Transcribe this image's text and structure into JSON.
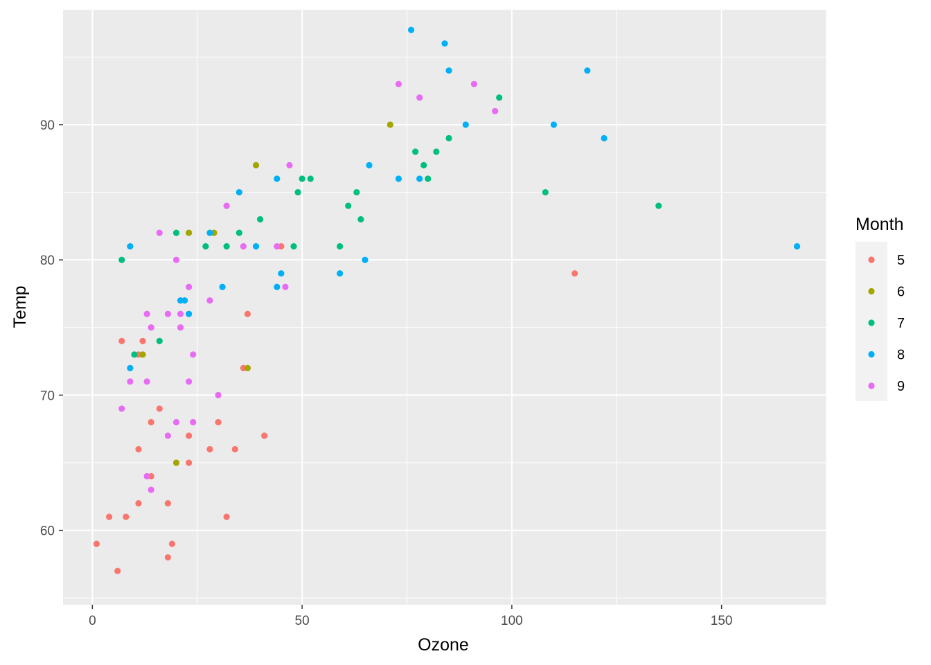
{
  "chart_data": {
    "type": "scatter",
    "xlabel": "Ozone",
    "ylabel": "Temp",
    "xlim": [
      -7,
      175
    ],
    "ylim": [
      54.5,
      98.5
    ],
    "x_ticks": [
      0,
      50,
      100,
      150
    ],
    "x_tick_labels": [
      "0",
      "50",
      "100",
      "150"
    ],
    "y_ticks": [
      60,
      70,
      80,
      90
    ],
    "y_tick_labels": [
      "60",
      "70",
      "80",
      "90"
    ],
    "grid": true,
    "legend": {
      "title": "Month",
      "position": "right",
      "entries": [
        {
          "label": "5",
          "color": "#F8766D"
        },
        {
          "label": "6",
          "color": "#A3A500"
        },
        {
          "label": "7",
          "color": "#00BF7D"
        },
        {
          "label": "8",
          "color": "#00B0F6"
        },
        {
          "label": "9",
          "color": "#E76BF3"
        }
      ]
    },
    "series": [
      {
        "name": "5",
        "color": "#F8766D",
        "points": [
          {
            "x": 1,
            "y": 59
          },
          {
            "x": 4,
            "y": 61
          },
          {
            "x": 6,
            "y": 57
          },
          {
            "x": 7,
            "y": 74
          },
          {
            "x": 8,
            "y": 61
          },
          {
            "x": 11,
            "y": 66
          },
          {
            "x": 11,
            "y": 62
          },
          {
            "x": 11,
            "y": 73
          },
          {
            "x": 12,
            "y": 74
          },
          {
            "x": 14,
            "y": 68
          },
          {
            "x": 14,
            "y": 64
          },
          {
            "x": 16,
            "y": 69
          },
          {
            "x": 18,
            "y": 62
          },
          {
            "x": 18,
            "y": 58
          },
          {
            "x": 19,
            "y": 59
          },
          {
            "x": 23,
            "y": 67
          },
          {
            "x": 23,
            "y": 65
          },
          {
            "x": 28,
            "y": 66
          },
          {
            "x": 30,
            "y": 68
          },
          {
            "x": 32,
            "y": 61
          },
          {
            "x": 34,
            "y": 66
          },
          {
            "x": 36,
            "y": 72
          },
          {
            "x": 37,
            "y": 76
          },
          {
            "x": 41,
            "y": 67
          },
          {
            "x": 45,
            "y": 81
          },
          {
            "x": 115,
            "y": 79
          }
        ]
      },
      {
        "name": "6",
        "color": "#A3A500",
        "points": [
          {
            "x": 12,
            "y": 73
          },
          {
            "x": 20,
            "y": 65
          },
          {
            "x": 23,
            "y": 82
          },
          {
            "x": 29,
            "y": 82
          },
          {
            "x": 37,
            "y": 72
          },
          {
            "x": 39,
            "y": 87
          },
          {
            "x": 71,
            "y": 90
          }
        ]
      },
      {
        "name": "7",
        "color": "#00BF7D",
        "points": [
          {
            "x": 7,
            "y": 80
          },
          {
            "x": 10,
            "y": 73
          },
          {
            "x": 16,
            "y": 74
          },
          {
            "x": 20,
            "y": 82
          },
          {
            "x": 27,
            "y": 81
          },
          {
            "x": 32,
            "y": 81
          },
          {
            "x": 35,
            "y": 82
          },
          {
            "x": 40,
            "y": 83
          },
          {
            "x": 48,
            "y": 81
          },
          {
            "x": 49,
            "y": 85
          },
          {
            "x": 50,
            "y": 86
          },
          {
            "x": 52,
            "y": 86
          },
          {
            "x": 59,
            "y": 81
          },
          {
            "x": 61,
            "y": 84
          },
          {
            "x": 63,
            "y": 85
          },
          {
            "x": 64,
            "y": 83
          },
          {
            "x": 77,
            "y": 88
          },
          {
            "x": 79,
            "y": 87
          },
          {
            "x": 80,
            "y": 86
          },
          {
            "x": 82,
            "y": 88
          },
          {
            "x": 85,
            "y": 89
          },
          {
            "x": 97,
            "y": 92
          },
          {
            "x": 108,
            "y": 85
          },
          {
            "x": 135,
            "y": 84
          }
        ]
      },
      {
        "name": "8",
        "color": "#00B0F6",
        "points": [
          {
            "x": 9,
            "y": 81
          },
          {
            "x": 9,
            "y": 72
          },
          {
            "x": 21,
            "y": 77
          },
          {
            "x": 22,
            "y": 77
          },
          {
            "x": 23,
            "y": 76
          },
          {
            "x": 28,
            "y": 82
          },
          {
            "x": 31,
            "y": 78
          },
          {
            "x": 35,
            "y": 85
          },
          {
            "x": 39,
            "y": 81
          },
          {
            "x": 44,
            "y": 86
          },
          {
            "x": 44,
            "y": 78
          },
          {
            "x": 45,
            "y": 79
          },
          {
            "x": 59,
            "y": 79
          },
          {
            "x": 65,
            "y": 80
          },
          {
            "x": 66,
            "y": 87
          },
          {
            "x": 73,
            "y": 86
          },
          {
            "x": 76,
            "y": 97
          },
          {
            "x": 78,
            "y": 86
          },
          {
            "x": 84,
            "y": 96
          },
          {
            "x": 85,
            "y": 94
          },
          {
            "x": 89,
            "y": 90
          },
          {
            "x": 110,
            "y": 90
          },
          {
            "x": 118,
            "y": 94
          },
          {
            "x": 122,
            "y": 89
          },
          {
            "x": 168,
            "y": 81
          }
        ]
      },
      {
        "name": "9",
        "color": "#E76BF3",
        "points": [
          {
            "x": 7,
            "y": 69
          },
          {
            "x": 9,
            "y": 71
          },
          {
            "x": 13,
            "y": 76
          },
          {
            "x": 13,
            "y": 71
          },
          {
            "x": 13,
            "y": 64
          },
          {
            "x": 14,
            "y": 75
          },
          {
            "x": 14,
            "y": 63
          },
          {
            "x": 16,
            "y": 82
          },
          {
            "x": 18,
            "y": 76
          },
          {
            "x": 18,
            "y": 67
          },
          {
            "x": 20,
            "y": 80
          },
          {
            "x": 20,
            "y": 68
          },
          {
            "x": 21,
            "y": 75
          },
          {
            "x": 21,
            "y": 76
          },
          {
            "x": 23,
            "y": 78
          },
          {
            "x": 23,
            "y": 71
          },
          {
            "x": 24,
            "y": 73
          },
          {
            "x": 24,
            "y": 68
          },
          {
            "x": 28,
            "y": 77
          },
          {
            "x": 30,
            "y": 70
          },
          {
            "x": 32,
            "y": 84
          },
          {
            "x": 36,
            "y": 81
          },
          {
            "x": 44,
            "y": 81
          },
          {
            "x": 46,
            "y": 78
          },
          {
            "x": 47,
            "y": 87
          },
          {
            "x": 73,
            "y": 93
          },
          {
            "x": 78,
            "y": 92
          },
          {
            "x": 91,
            "y": 93
          },
          {
            "x": 96,
            "y": 91
          }
        ]
      }
    ]
  }
}
